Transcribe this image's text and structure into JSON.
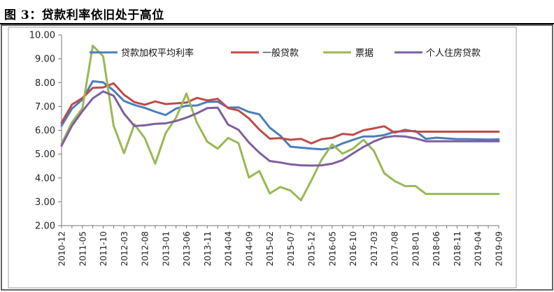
{
  "title": "图 3：贷款利率依旧处于高位",
  "chart_data": {
    "type": "line",
    "title": "图 3：贷款利率依旧处于高位",
    "xlabel": "",
    "ylabel": "",
    "ylim": [
      2.0,
      10.0
    ],
    "yticks": [
      "2.00",
      "3.00",
      "4.00",
      "5.00",
      "6.00",
      "7.00",
      "8.00",
      "9.00",
      "10.00"
    ],
    "legend_position": "top",
    "x": [
      "2010-12",
      "2011-03",
      "2011-05",
      "2011-07",
      "2011-10",
      "2011-12",
      "2012-03",
      "2012-05",
      "2012-08",
      "2012-10",
      "2013-01",
      "2013-03",
      "2013-06",
      "2013-08",
      "2013-11",
      "2014-01",
      "2014-04",
      "2014-06",
      "2014-09",
      "2014-11",
      "2015-02",
      "2015-04",
      "2015-07",
      "2015-09",
      "2015-12",
      "2016-02",
      "2016-05",
      "2016-07",
      "2016-10",
      "2016-12",
      "2017-03",
      "2017-05",
      "2017-08",
      "2017-10",
      "2018-01",
      "2018-03",
      "2018-06",
      "2018-08",
      "2018-11",
      "2019-01",
      "2019-04",
      "2019-06",
      "2019-09"
    ],
    "xticks": [
      "2010-12",
      "2011-05",
      "2011-10",
      "2012-03",
      "2012-08",
      "2013-01",
      "2013-06",
      "2013-11",
      "2014-04",
      "2014-09",
      "2015-02",
      "2015-07",
      "2015-12",
      "2016-05",
      "2016-10",
      "2017-03",
      "2017-08",
      "2018-01",
      "2018-06",
      "2018-11",
      "2019-04",
      "2019-09"
    ],
    "series": [
      {
        "name": "贷款加权平均利率",
        "color": "#4a7ebb",
        "values": [
          6.19,
          6.91,
          7.29,
          8.06,
          8.01,
          7.67,
          7.23,
          7.06,
          6.94,
          6.78,
          6.64,
          6.91,
          7.03,
          7.04,
          7.19,
          7.2,
          6.95,
          6.96,
          6.77,
          6.67,
          6.11,
          5.78,
          5.31,
          5.27,
          5.23,
          5.2,
          5.26,
          5.45,
          5.6,
          5.74,
          5.74,
          5.8,
          5.94,
          5.96,
          5.97,
          5.64,
          5.69,
          5.66,
          5.63,
          5.63,
          5.62,
          5.61,
          5.62
        ]
      },
      {
        "name": "一般贷款",
        "color": "#be4b48",
        "values": [
          6.31,
          7.08,
          7.35,
          7.78,
          7.8,
          7.97,
          7.49,
          7.18,
          7.07,
          7.21,
          7.1,
          7.13,
          7.16,
          7.36,
          7.25,
          7.32,
          6.93,
          6.83,
          6.5,
          6.03,
          5.65,
          5.67,
          5.6,
          5.64,
          5.45,
          5.63,
          5.68,
          5.85,
          5.81,
          6.0,
          6.08,
          6.17,
          5.9,
          6.02,
          5.94,
          5.94,
          5.94,
          5.94,
          5.94,
          5.94,
          5.94,
          5.94,
          5.94
        ]
      },
      {
        "name": "票据",
        "color": "#98b954",
        "values": [
          5.43,
          6.33,
          6.92,
          9.55,
          9.1,
          6.2,
          5.04,
          6.25,
          5.67,
          4.6,
          5.88,
          6.53,
          7.54,
          6.32,
          5.52,
          5.23,
          5.68,
          5.46,
          4.02,
          4.29,
          3.35,
          3.62,
          3.47,
          3.06,
          3.9,
          4.78,
          5.41,
          5.02,
          5.23,
          5.6,
          5.14,
          4.2,
          3.87,
          3.66,
          3.66,
          3.33,
          3.33,
          3.33,
          3.33,
          3.33,
          3.33,
          3.33,
          3.33
        ]
      },
      {
        "name": "个人住房贷款",
        "color": "#7d5fa0",
        "values": [
          5.35,
          6.19,
          6.8,
          7.34,
          7.63,
          7.45,
          6.7,
          6.18,
          6.21,
          6.27,
          6.29,
          6.39,
          6.53,
          6.71,
          6.93,
          6.95,
          6.24,
          6.02,
          5.49,
          5.06,
          4.71,
          4.65,
          4.57,
          4.53,
          4.52,
          4.53,
          4.6,
          4.75,
          5.03,
          5.3,
          5.53,
          5.7,
          5.76,
          5.74,
          5.66,
          5.54,
          5.54,
          5.54,
          5.54,
          5.54,
          5.54,
          5.54,
          5.54
        ]
      }
    ]
  }
}
